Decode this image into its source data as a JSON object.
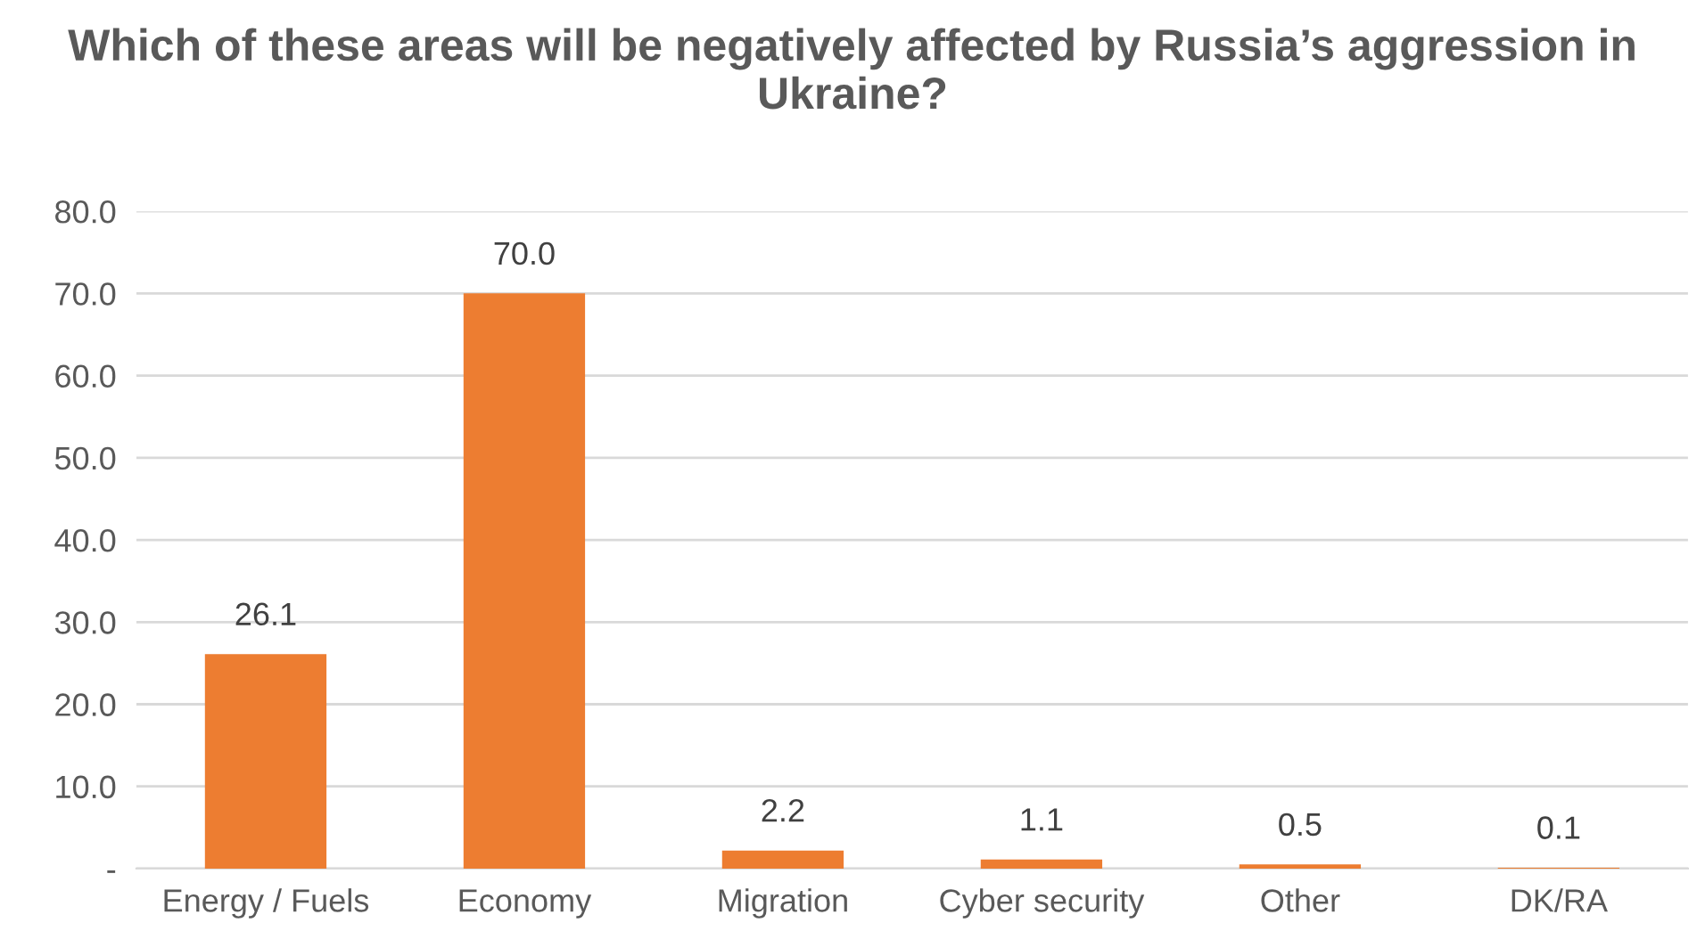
{
  "chart_data": {
    "type": "bar",
    "title": "Which of these areas will be negatively affected by Russia’s aggression in Ukraine?",
    "categories": [
      "Energy / Fuels",
      "Economy",
      "Migration",
      "Cyber security",
      "Other",
      "DK/RA"
    ],
    "values": [
      26.1,
      70.0,
      2.2,
      1.1,
      0.5,
      0.1
    ],
    "value_labels": [
      "26.1",
      "70.0",
      "2.2",
      "1.1",
      "0.5",
      "0.1"
    ],
    "color": "#ed7d31",
    "ylim": [
      0,
      80
    ],
    "yticks": [
      {
        "value": 0,
        "label": "-"
      },
      {
        "value": 10,
        "label": "10.0"
      },
      {
        "value": 20,
        "label": "20.0"
      },
      {
        "value": 30,
        "label": "30.0"
      },
      {
        "value": 40,
        "label": "40.0"
      },
      {
        "value": 50,
        "label": "50.0"
      },
      {
        "value": 60,
        "label": "60.0"
      },
      {
        "value": 70,
        "label": "70.0"
      },
      {
        "value": 80,
        "label": "80.0"
      }
    ],
    "grid": "y",
    "legend": false
  }
}
